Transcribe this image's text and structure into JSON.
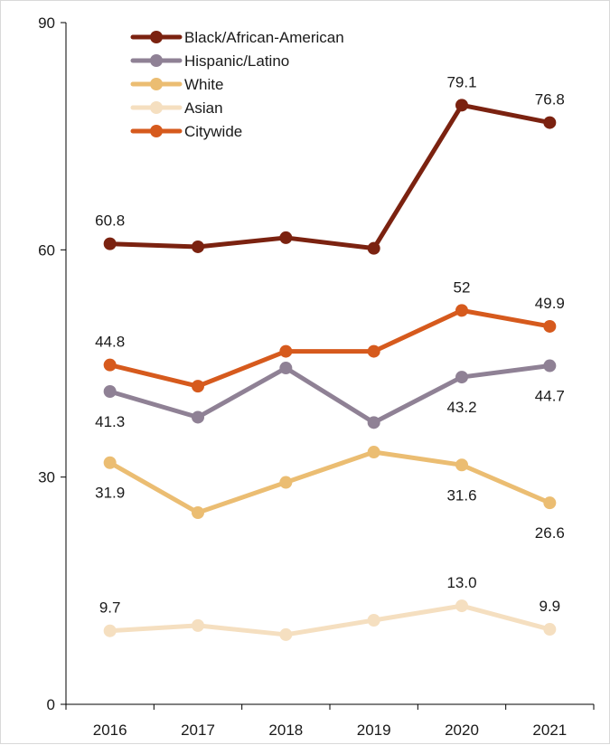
{
  "chart_data": {
    "type": "line",
    "title": "",
    "xlabel": "",
    "ylabel": "",
    "categories": [
      "2016",
      "2017",
      "2018",
      "2019",
      "2020",
      "2021"
    ],
    "ylim": [
      0,
      90
    ],
    "yticks": [
      "0",
      "30",
      "60",
      "90"
    ],
    "grid": false,
    "legend_position": "top-left",
    "series": [
      {
        "name": "Black/African-American",
        "color": "#7b2210",
        "values": [
          60.8,
          60.4,
          61.6,
          60.2,
          79.1,
          76.8
        ],
        "labels": [
          {
            "index": 0,
            "text": "60.8",
            "pos": "above"
          },
          {
            "index": 4,
            "text": "79.1",
            "pos": "above"
          },
          {
            "index": 5,
            "text": "76.8",
            "pos": "above"
          }
        ]
      },
      {
        "name": "Hispanic/Latino",
        "color": "#8f8195",
        "values": [
          41.3,
          37.9,
          44.4,
          37.2,
          43.2,
          44.7
        ],
        "labels": [
          {
            "index": 0,
            "text": "41.3",
            "pos": "below"
          },
          {
            "index": 4,
            "text": "43.2",
            "pos": "below"
          },
          {
            "index": 5,
            "text": "44.7",
            "pos": "below"
          }
        ]
      },
      {
        "name": "White",
        "color": "#ebbd72",
        "values": [
          31.9,
          25.3,
          29.3,
          33.3,
          31.6,
          26.6
        ],
        "labels": [
          {
            "index": 0,
            "text": "31.9",
            "pos": "below"
          },
          {
            "index": 4,
            "text": "31.6",
            "pos": "below"
          },
          {
            "index": 5,
            "text": "26.6",
            "pos": "below"
          }
        ]
      },
      {
        "name": "Asian",
        "color": "#f5dfc0",
        "values": [
          9.7,
          10.4,
          9.2,
          11.1,
          13.0,
          9.9
        ],
        "labels": [
          {
            "index": 0,
            "text": "9.7",
            "pos": "above"
          },
          {
            "index": 4,
            "text": "13.0",
            "pos": "above"
          },
          {
            "index": 5,
            "text": "9.9",
            "pos": "above"
          }
        ]
      },
      {
        "name": "Citywide",
        "color": "#d65a1d",
        "values": [
          44.8,
          42.0,
          46.6,
          46.6,
          52.0,
          49.9
        ],
        "labels": [
          {
            "index": 0,
            "text": "44.8",
            "pos": "above"
          },
          {
            "index": 4,
            "text": "52",
            "pos": "above"
          },
          {
            "index": 5,
            "text": "49.9",
            "pos": "above"
          }
        ]
      }
    ]
  }
}
